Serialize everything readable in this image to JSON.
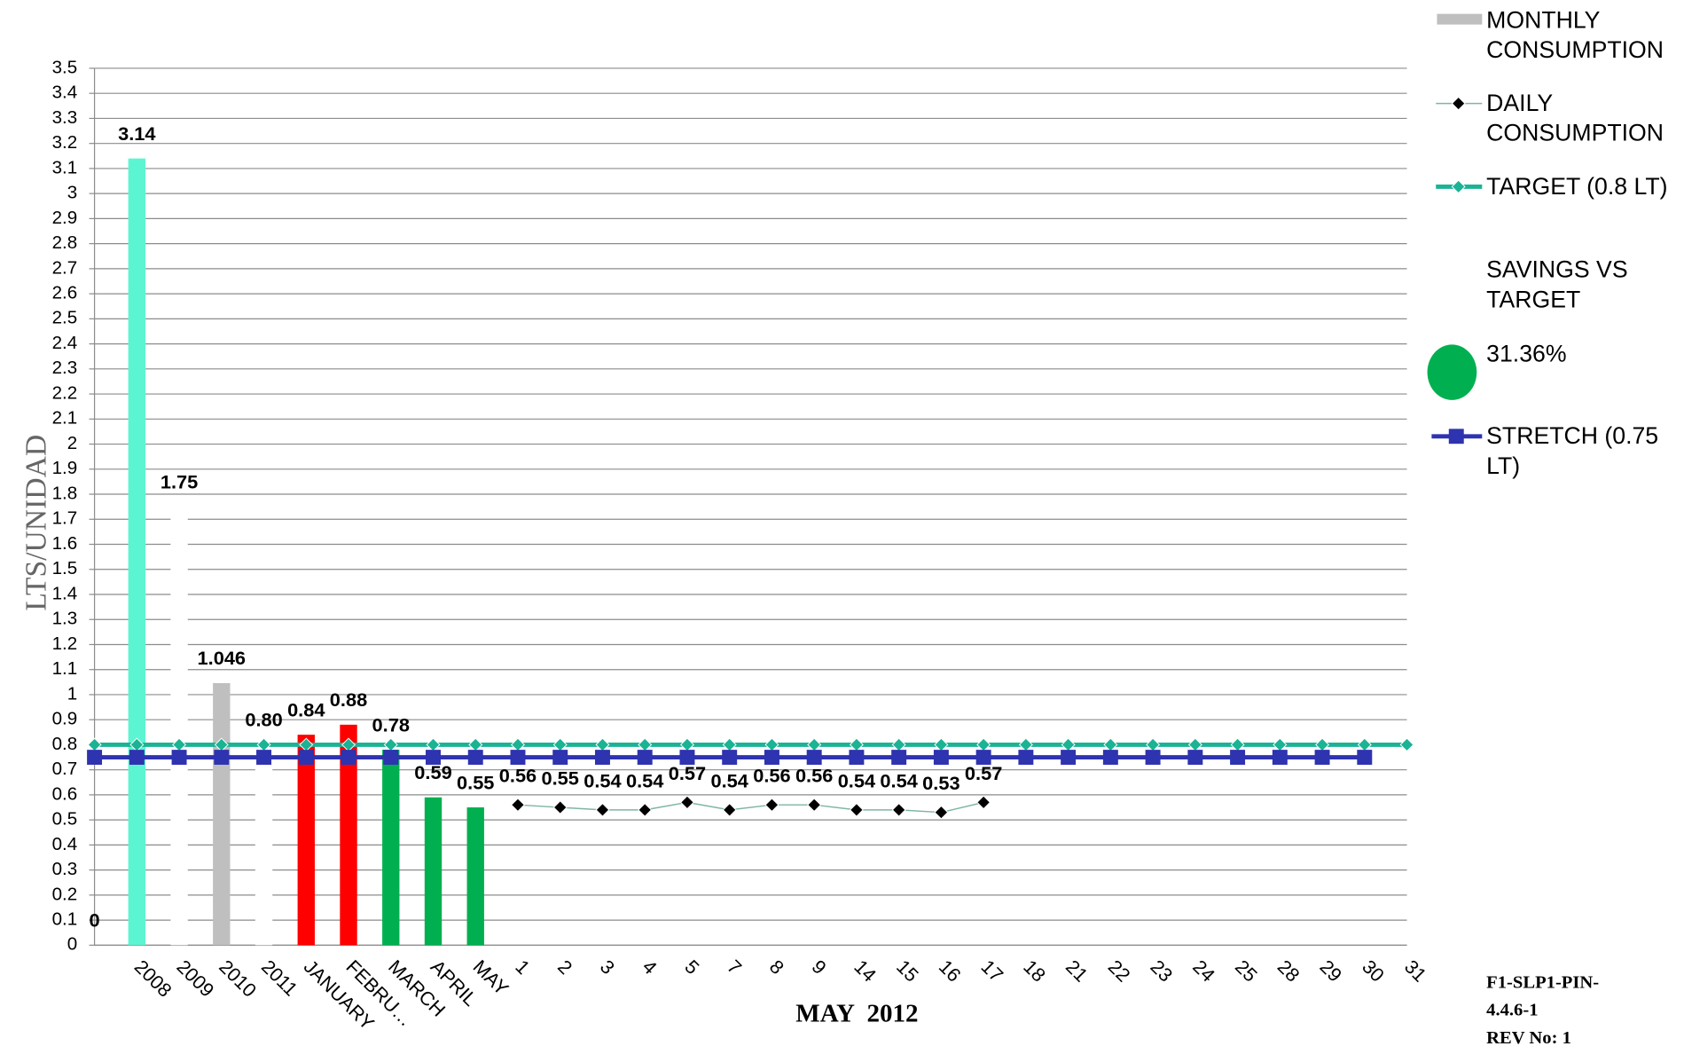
{
  "chart_data": {
    "type": "bar",
    "y_label": "LTS/UNIDAD",
    "x_label": "MAY  2012",
    "categories": [
      null,
      "2008",
      "2009",
      "2010",
      "2011",
      "JANUARY",
      "FEBRU…",
      "MARCH",
      "APRIL",
      "MAY",
      "1",
      "2",
      "3",
      "4",
      "5",
      "7",
      "8",
      "9",
      "14",
      "15",
      "16",
      "17",
      "18",
      "21",
      "22",
      "23",
      "24",
      "25",
      "28",
      "29",
      "30",
      "31"
    ],
    "ylim": [
      0,
      3.5
    ],
    "yticks": [
      0,
      0.1,
      0.2,
      0.3,
      0.4,
      0.5,
      0.6,
      0.7,
      0.8,
      0.9,
      1,
      1.1,
      1.2,
      1.3,
      1.4,
      1.5,
      1.6,
      1.7,
      1.8,
      1.9,
      2,
      2.1,
      2.2,
      2.3,
      2.4,
      2.5,
      2.6,
      2.7,
      2.8,
      2.9,
      3,
      3.1,
      3.2,
      3.3,
      3.4,
      3.5
    ],
    "grid": true,
    "series": [
      {
        "name": "MONTHLY CONSUMPTION",
        "type": "bar",
        "color": "#bfbfbf",
        "colors": [
          "#ffffff",
          "#5cf5d2",
          "#ffffff",
          "#bfbfbf",
          "#ffffff",
          "#ff0000",
          "#ff0000",
          "#00b050",
          "#00b050",
          "#00b050"
        ],
        "values": [
          0,
          3.14,
          1.75,
          1.046,
          0.8,
          0.84,
          0.88,
          0.78,
          0.59,
          0.55,
          null,
          null,
          null,
          null,
          null,
          null,
          null,
          null,
          null,
          null,
          null,
          null,
          null,
          null,
          null,
          null,
          null,
          null,
          null,
          null,
          null,
          null
        ],
        "value_labels": [
          "0",
          "3.14",
          "1.75",
          "1.046",
          "0.80",
          "0.84",
          "0.88",
          "0.78",
          "0.59",
          "0.55",
          null,
          null,
          null,
          null,
          null,
          null,
          null,
          null,
          null,
          null,
          null,
          null,
          null,
          null,
          null,
          null,
          null,
          null,
          null,
          null,
          null,
          null
        ]
      },
      {
        "name": "DAILY CONSUMPTION",
        "type": "line",
        "color": "#000000",
        "line_color": "#7fb5a5",
        "marker": "diamond",
        "labels": true,
        "values": [
          null,
          null,
          null,
          null,
          null,
          null,
          null,
          null,
          null,
          null,
          0.56,
          0.55,
          0.54,
          0.54,
          0.57,
          0.54,
          0.56,
          0.56,
          0.54,
          0.54,
          0.53,
          0.57,
          null,
          null,
          null,
          null,
          null,
          null,
          null,
          null,
          null,
          null
        ]
      },
      {
        "name": "TARGET  (0.8 LT)",
        "type": "line",
        "color": "#1ab394",
        "line_color": "#1ab394",
        "marker": "diamond",
        "labels": false,
        "values": [
          0.8,
          0.8,
          0.8,
          0.8,
          0.8,
          0.8,
          0.8,
          0.8,
          0.8,
          0.8,
          0.8,
          0.8,
          0.8,
          0.8,
          0.8,
          0.8,
          0.8,
          0.8,
          0.8,
          0.8,
          0.8,
          0.8,
          0.8,
          0.8,
          0.8,
          0.8,
          0.8,
          0.8,
          0.8,
          0.8,
          0.8,
          0.8
        ]
      },
      {
        "name": "STRETCH  (0.75 LT)",
        "type": "line",
        "color": "#2e33b0",
        "line_color": "#2e33b0",
        "marker": "square",
        "labels": false,
        "values": [
          0.75,
          0.75,
          0.75,
          0.75,
          0.75,
          0.75,
          0.75,
          0.75,
          0.75,
          0.75,
          0.75,
          0.75,
          0.75,
          0.75,
          0.75,
          0.75,
          0.75,
          0.75,
          0.75,
          0.75,
          0.75,
          0.75,
          0.75,
          0.75,
          0.75,
          0.75,
          0.75,
          0.75,
          0.75,
          0.75,
          0.75,
          null
        ]
      }
    ],
    "savings_label": "SAVINGS VS TARGET",
    "savings_value": "31.36%",
    "savings_color": "#00b050",
    "footer_code": "F1-SLP1-PIN-4.4.6-1",
    "footer_revision": "REV No: 1"
  }
}
